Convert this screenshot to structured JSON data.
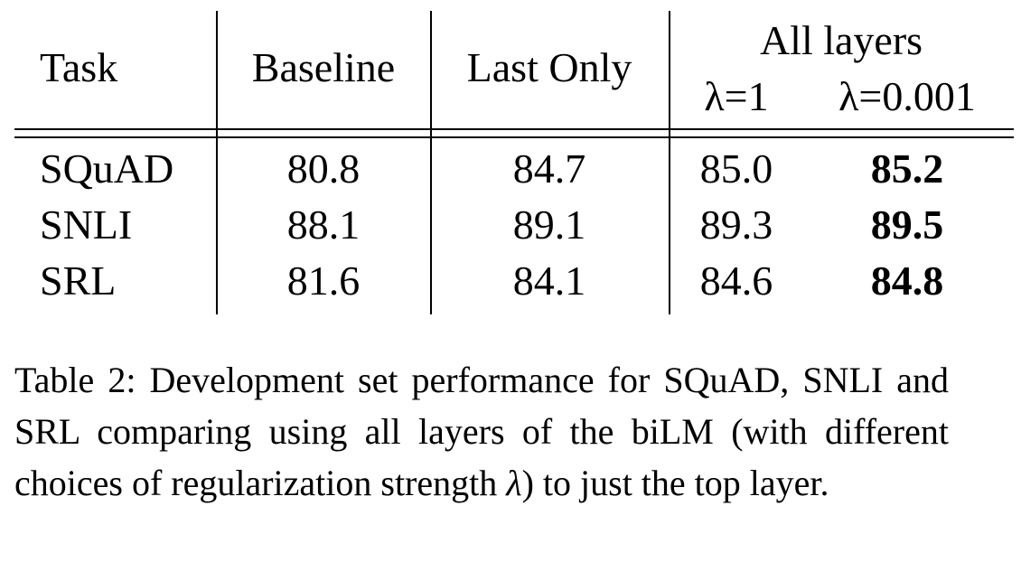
{
  "table": {
    "headers": {
      "task": "Task",
      "baseline": "Baseline",
      "last_only": "Last Only",
      "all_layers": "All layers",
      "lambda_1": "λ=1",
      "lambda_0001": "λ=0.001"
    },
    "rows": [
      {
        "task": "SQuAD",
        "baseline": "80.8",
        "last_only": "84.7",
        "lambda_1": "85.0",
        "lambda_0001": "85.2",
        "best": "lambda_0001"
      },
      {
        "task": "SNLI",
        "baseline": "88.1",
        "last_only": "89.1",
        "lambda_1": "89.3",
        "lambda_0001": "89.5",
        "best": "lambda_0001"
      },
      {
        "task": "SRL",
        "baseline": "81.6",
        "last_only": "84.1",
        "lambda_1": "84.6",
        "lambda_0001": "84.8",
        "best": "lambda_0001"
      }
    ]
  },
  "caption": {
    "label": "Table 2:",
    "text_before_lambda": "Development set performance for SQuAD, SNLI and SRL comparing using all layers of the biLM (with different choices of regularization strength ",
    "lambda_symbol": "λ",
    "text_after_lambda": ") to just the top layer."
  }
}
